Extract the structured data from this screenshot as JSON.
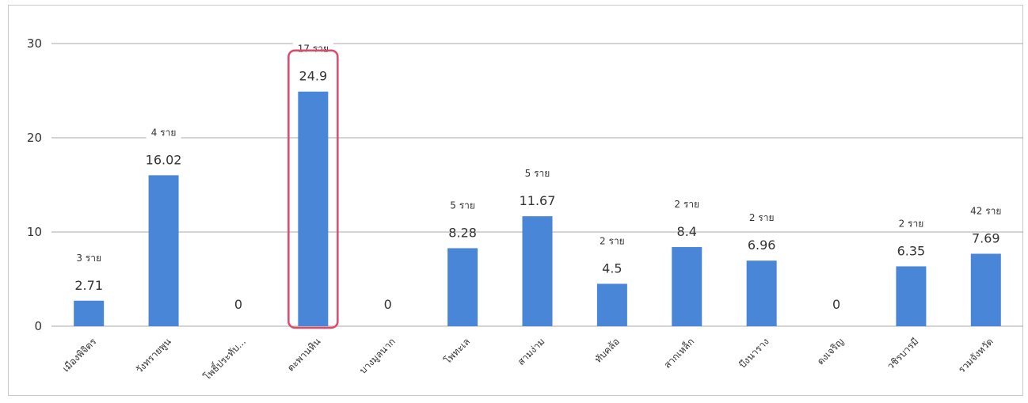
{
  "chart_data": {
    "type": "bar",
    "categories": [
      "เมืองพิจิตร",
      "วังทรายพูน",
      "โพธิ์ประทับ...",
      "ตะพานหิน",
      "บางมูลนาก",
      "โพทะเล",
      "สามง่าม",
      "ทับคล้อ",
      "สากเหล็ก",
      "บึงนาราง",
      "ดงเจริญ",
      "วชิรบารมี",
      "รวมจังหวัด"
    ],
    "values": [
      2.71,
      16.02,
      0,
      24.9,
      0,
      8.28,
      11.67,
      4.5,
      8.4,
      6.96,
      0,
      6.35,
      7.69
    ],
    "value_labels": [
      "2.71",
      "16.02",
      "0",
      "24.9",
      "0",
      "8.28",
      "11.67",
      "4.5",
      "8.4",
      "6.96",
      "0",
      "6.35",
      "7.69"
    ],
    "count_labels": [
      "3 ราย",
      "4 ราย",
      "",
      "17 ราย",
      "",
      "5 ราย",
      "5 ราย",
      "2 ราย",
      "2 ราย",
      "2 ราย",
      "",
      "2 ราย",
      "42 ราย"
    ],
    "yticks": [
      0,
      10,
      20,
      30
    ],
    "ylim": [
      0,
      30
    ],
    "grid": true,
    "highlighted_category": "ตะพานหิน",
    "bar_color": "#4a86d8",
    "highlight_color": "#e0486a"
  }
}
